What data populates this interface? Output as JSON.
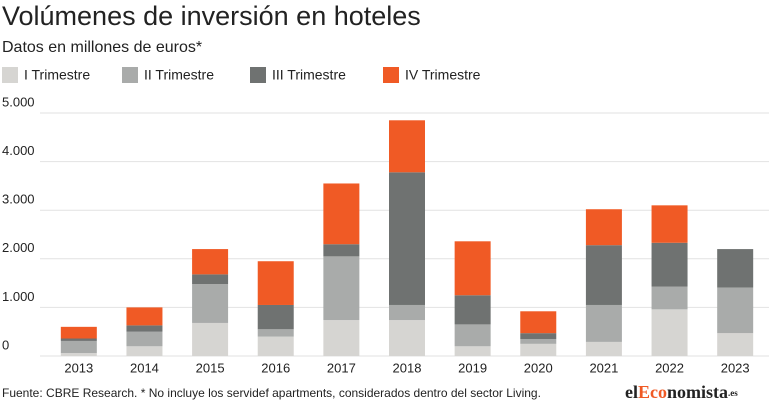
{
  "chart_data": {
    "type": "stacked_bar",
    "title": "Volúmenes de inversión en hoteles",
    "subtitle": "Datos en millones de euros*",
    "categories": [
      "2013",
      "2014",
      "2015",
      "2016",
      "2017",
      "2018",
      "2019",
      "2020",
      "2021",
      "2022",
      "2023"
    ],
    "series": [
      {
        "name": "I Trimestre",
        "color": "#d6d5d2",
        "values": [
          60,
          200,
          680,
          400,
          740,
          740,
          200,
          250,
          290,
          960,
          470
        ]
      },
      {
        "name": "II Trimestre",
        "color": "#a9abaa",
        "values": [
          250,
          300,
          800,
          150,
          1310,
          310,
          450,
          100,
          760,
          470,
          940
        ]
      },
      {
        "name": "III Trimestre",
        "color": "#6f7271",
        "values": [
          50,
          130,
          200,
          500,
          250,
          2730,
          600,
          120,
          1230,
          900,
          790
        ]
      },
      {
        "name": "IV Trimestre",
        "color": "#f05a25",
        "values": [
          240,
          370,
          520,
          900,
          1250,
          1070,
          1110,
          450,
          740,
          770,
          null
        ]
      }
    ],
    "ylim": [
      0,
      5000
    ],
    "yticks": [
      0,
      {
        "value": 1000,
        "label": "1.000"
      },
      {
        "value": 2000,
        "label": "2.000"
      },
      {
        "value": 3000,
        "label": "3.000"
      },
      {
        "value": 4000,
        "label": "4.000"
      },
      {
        "value": 5000,
        "label": "5.000"
      }
    ],
    "grid": true,
    "source": "Fuente: CBRE Research. * No incluye los servidef apartments, considerados dentro del sector Living.",
    "logo": [
      "el",
      "Eco",
      "nomista",
      ".es"
    ]
  }
}
